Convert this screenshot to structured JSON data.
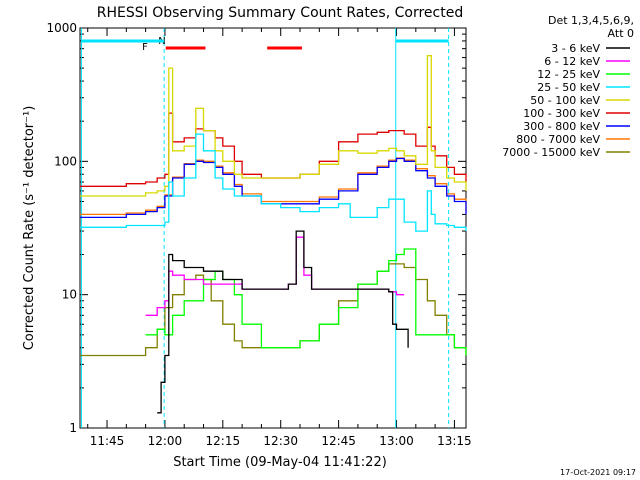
{
  "colors": {
    "background": "#ffffff",
    "axis": "#000000",
    "attenuator_marker": "#00e5ff",
    "flare_flag": "#ff0000",
    "night_flag": "#00e5ff"
  },
  "flags": {
    "flare_label": "F",
    "night_label": "N"
  },
  "chart_data": {
    "type": "line",
    "title": "RHESSI Observing Summary Count Rates, Corrected",
    "xlabel": "Start Time (09-May-04 11:41:22)",
    "ylabel": "Corrected Count Rate (s⁻¹ detector⁻¹)",
    "yscale": "log",
    "ylim": [
      1,
      1000
    ],
    "xlim_minutes_after_11_00": [
      38,
      138
    ],
    "x_unit": "minutes after 11:00 UT",
    "y_ticks": [
      {
        "value": 1,
        "label": "1"
      },
      {
        "value": 10,
        "label": "10"
      },
      {
        "value": 100,
        "label": "100"
      },
      {
        "value": 1000,
        "label": "1000"
      }
    ],
    "x_ticks": [
      {
        "value": 45,
        "label": "11:45"
      },
      {
        "value": 60,
        "label": "12:00"
      },
      {
        "value": 75,
        "label": "12:15"
      },
      {
        "value": 90,
        "label": "12:30"
      },
      {
        "value": 105,
        "label": "12:45"
      },
      {
        "value": 120,
        "label": "13:00"
      },
      {
        "value": 135,
        "label": "13:15"
      }
    ],
    "legend_header": [
      "Det 1,3,4,5,6,9,",
      "Att 0"
    ],
    "legend_placement": "right",
    "timestamp": "17-Oct-2021 09:17",
    "attenuator_markers": [
      {
        "x": 38.4,
        "style": "solid"
      },
      {
        "x": 59.8,
        "style": "dashed"
      },
      {
        "x": 119.8,
        "style": "solid"
      },
      {
        "x": 133.5,
        "style": "dashed"
      }
    ],
    "flare_bars": [
      [
        60.2,
        70.5
      ],
      [
        86.5,
        95.5
      ]
    ],
    "night_bars": [
      [
        38.4,
        59.8
      ],
      [
        119.8,
        133.5
      ]
    ],
    "series": [
      {
        "name": "3 - 6 keV",
        "color": "#000000",
        "x": [
          38,
          40,
          45,
          50,
          55,
          57,
          58,
          59,
          60,
          61,
          62,
          65,
          70,
          75,
          80,
          85,
          88,
          90,
          92,
          94,
          96,
          98,
          100,
          105,
          110,
          115,
          118,
          119,
          120,
          122,
          123,
          124
        ],
        "y": [
          null,
          null,
          null,
          null,
          null,
          null,
          1.3,
          2.2,
          3.5,
          20,
          18,
          16,
          15,
          13,
          11,
          11,
          11,
          11,
          12,
          30,
          16,
          11,
          11,
          11,
          11,
          11,
          10.5,
          6,
          5.5,
          5.5,
          4,
          null
        ]
      },
      {
        "name": "6 - 12 keV",
        "color": "#ff00ff",
        "x": [
          55,
          58,
          59,
          60,
          61,
          62,
          65,
          70,
          75,
          80,
          85,
          88,
          90,
          92,
          94,
          96,
          98,
          100,
          105,
          110,
          115,
          118,
          120,
          122
        ],
        "y": [
          7,
          8,
          8,
          9,
          15,
          14,
          13,
          12,
          12,
          11,
          11,
          11,
          11,
          12,
          27,
          14,
          11,
          11,
          11,
          11,
          11,
          10.5,
          10,
          10
        ]
      },
      {
        "name": "12 - 25 keV",
        "color": "#00ff00",
        "x": [
          55,
          58,
          60,
          62,
          65,
          70,
          73,
          75,
          78,
          80,
          85,
          90,
          95,
          100,
          105,
          110,
          115,
          118,
          120,
          122,
          125,
          130,
          135,
          138
        ],
        "y": [
          5,
          5.5,
          5,
          7,
          9,
          13,
          15,
          13,
          10,
          6,
          4,
          4,
          4.5,
          6,
          8,
          12,
          15,
          18,
          20,
          22,
          5,
          5,
          4,
          3.5
        ]
      },
      {
        "name": "25 - 50 keV",
        "color": "#00e5ff",
        "x": [
          38,
          45,
          50,
          55,
          58,
          60,
          61,
          62,
          65,
          68,
          70,
          73,
          75,
          78,
          80,
          85,
          90,
          95,
          100,
          105,
          108,
          110,
          115,
          118,
          120,
          122,
          125,
          127,
          128,
          129,
          130,
          133,
          135,
          138
        ],
        "y": [
          32,
          32,
          33,
          33,
          33,
          35,
          70,
          55,
          75,
          160,
          120,
          75,
          62,
          55,
          55,
          48,
          45,
          42,
          45,
          48,
          38,
          38,
          45,
          52,
          52,
          35,
          30,
          30,
          60,
          40,
          34,
          33,
          32,
          30
        ]
      },
      {
        "name": "50 - 100 keV",
        "color": "#d8d800",
        "x": [
          38,
          45,
          50,
          55,
          58,
          60,
          61,
          62,
          65,
          68,
          70,
          73,
          75,
          78,
          80,
          85,
          90,
          95,
          100,
          105,
          110,
          115,
          118,
          120,
          122,
          125,
          128,
          129,
          130,
          133,
          135,
          138
        ],
        "y": [
          55,
          55,
          55,
          58,
          60,
          65,
          500,
          120,
          130,
          250,
          170,
          120,
          100,
          80,
          75,
          75,
          75,
          80,
          95,
          120,
          115,
          120,
          125,
          120,
          110,
          95,
          620,
          120,
          90,
          75,
          70,
          60
        ]
      },
      {
        "name": "100 - 300 keV",
        "color": "#dd0000",
        "x": [
          38,
          45,
          50,
          55,
          58,
          60,
          61,
          62,
          65,
          68,
          70,
          73,
          75,
          78,
          80,
          85,
          90,
          95,
          100,
          105,
          110,
          115,
          118,
          120,
          122,
          125,
          128,
          129,
          130,
          133,
          135,
          138
        ],
        "y": [
          65,
          65,
          68,
          70,
          75,
          80,
          230,
          140,
          150,
          175,
          170,
          150,
          130,
          100,
          80,
          75,
          75,
          80,
          100,
          140,
          160,
          165,
          170,
          170,
          160,
          130,
          180,
          130,
          110,
          90,
          80,
          70
        ]
      },
      {
        "name": "300 - 800 keV",
        "color": "#0000ff",
        "x": [
          38,
          45,
          50,
          55,
          58,
          60,
          62,
          65,
          68,
          70,
          73,
          75,
          78,
          80,
          85,
          90,
          95,
          100,
          105,
          110,
          115,
          118,
          120,
          122,
          125,
          128,
          130,
          133,
          135,
          138
        ],
        "y": [
          38,
          38,
          40,
          42,
          45,
          55,
          75,
          95,
          100,
          98,
          90,
          80,
          65,
          55,
          48,
          48,
          48,
          52,
          60,
          80,
          90,
          100,
          105,
          100,
          85,
          75,
          65,
          55,
          50,
          40
        ]
      },
      {
        "name": "800 - 7000 keV",
        "color": "#ff7700",
        "x": [
          38,
          45,
          50,
          55,
          58,
          60,
          62,
          65,
          68,
          70,
          73,
          75,
          78,
          80,
          85,
          90,
          95,
          100,
          105,
          110,
          115,
          118,
          120,
          122,
          125,
          128,
          130,
          133,
          135,
          138
        ],
        "y": [
          40,
          40,
          41,
          43,
          46,
          56,
          76,
          96,
          102,
          100,
          92,
          82,
          67,
          57,
          50,
          50,
          50,
          54,
          62,
          82,
          92,
          102,
          106,
          102,
          88,
          78,
          68,
          57,
          52,
          42
        ]
      },
      {
        "name": "7000 - 15000 keV",
        "color": "#808000",
        "x": [
          38,
          45,
          50,
          55,
          58,
          60,
          62,
          65,
          68,
          70,
          72,
          75,
          78,
          80,
          85,
          90,
          95,
          100,
          105,
          110,
          115,
          118,
          120,
          122,
          125,
          128,
          130,
          133,
          135,
          138
        ],
        "y": [
          3.5,
          3.5,
          3.5,
          4,
          5.5,
          8,
          10,
          13,
          14,
          13,
          9,
          6,
          4.5,
          4,
          4,
          4,
          4.5,
          6,
          9,
          12,
          15,
          17,
          17,
          16,
          13,
          9,
          7,
          5,
          4,
          3.5
        ]
      }
    ]
  }
}
